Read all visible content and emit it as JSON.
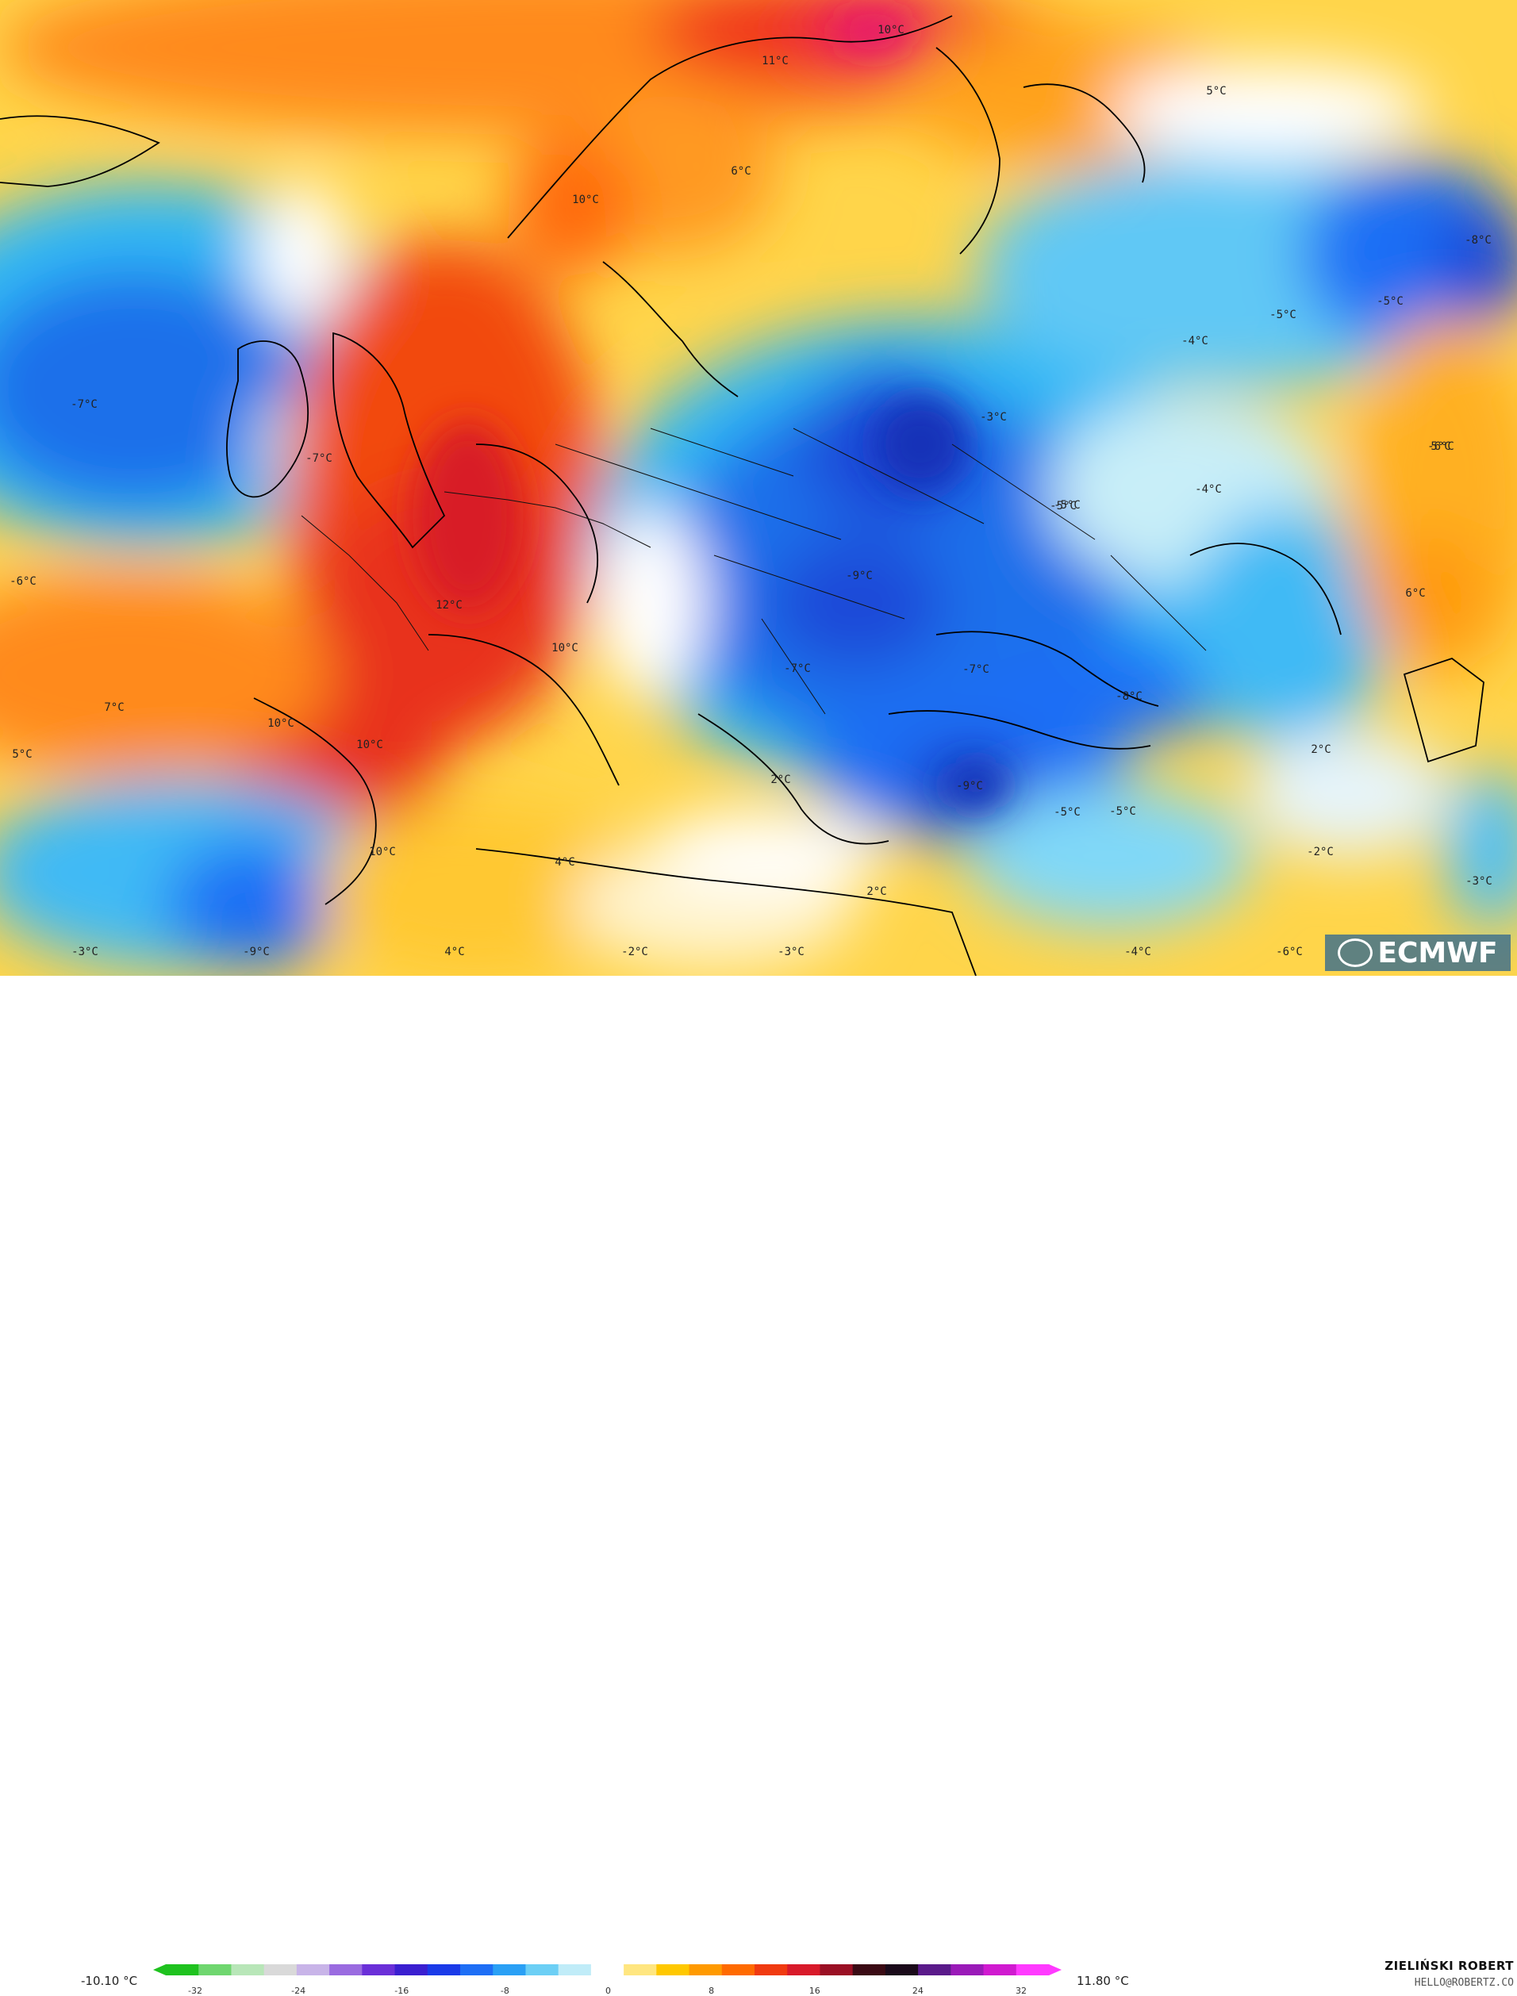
{
  "map": {
    "labels": [
      {
        "text": "10°C"
      },
      {
        "text": "11°C"
      },
      {
        "text": "5°C"
      },
      {
        "text": "6°C"
      },
      {
        "text": "10°C"
      },
      {
        "text": "-8°C"
      },
      {
        "text": "-5°C"
      },
      {
        "text": "-5°C"
      },
      {
        "text": "-4°C"
      },
      {
        "text": "-7°C"
      },
      {
        "text": "-3°C"
      },
      {
        "text": "-7°C"
      },
      {
        "text": "-6°C"
      },
      {
        "text": "-5°C"
      },
      {
        "text": "5°C"
      },
      {
        "text": "-4°C"
      },
      {
        "text": "-5°C"
      },
      {
        "text": "6°C"
      },
      {
        "text": "12°C"
      },
      {
        "text": "-9°C"
      },
      {
        "text": "10°C"
      },
      {
        "text": "-6°C"
      },
      {
        "text": "7°C"
      },
      {
        "text": "-7°C"
      },
      {
        "text": "-7°C"
      },
      {
        "text": "-8°C"
      },
      {
        "text": "10°C"
      },
      {
        "text": "5°C"
      },
      {
        "text": "10°C"
      },
      {
        "text": "2°C"
      },
      {
        "text": "2°C"
      },
      {
        "text": "-9°C"
      },
      {
        "text": "-5°C"
      },
      {
        "text": "-5°C"
      },
      {
        "text": "10°C"
      },
      {
        "text": "-2°C"
      },
      {
        "text": "4°C"
      },
      {
        "text": "2°C"
      },
      {
        "text": "-3°C"
      },
      {
        "text": "-3°C"
      },
      {
        "text": "-9°C"
      },
      {
        "text": "4°C"
      },
      {
        "text": "-2°C"
      },
      {
        "text": "-3°C"
      },
      {
        "text": "-4°C"
      },
      {
        "text": "-6°C"
      }
    ]
  },
  "legend": {
    "min": "-10.10 °C",
    "max": "11.80 °C",
    "ticks": [
      "-32",
      "-24",
      "-16",
      "-8",
      "0",
      "8",
      "16",
      "24",
      "32"
    ],
    "colors": [
      "#1fc21f",
      "#6fd66f",
      "#b8e6b8",
      "#d9d9d9",
      "#c8b4e8",
      "#9a6be0",
      "#6a2fd8",
      "#3a1fd0",
      "#1a3ae8",
      "#1e6ef5",
      "#2aa0f5",
      "#6ccff5",
      "#c0ecf8",
      "#ffffff",
      "#ffe680",
      "#ffc800",
      "#ff9a00",
      "#ff6a00",
      "#f03a10",
      "#d81a2a",
      "#9a0f24",
      "#3a0a14",
      "#1a0a1a",
      "#5a1a8a",
      "#9a1ab8",
      "#d01ad0",
      "#ff3aff"
    ]
  },
  "credits": {
    "author": "ZIELIŃSKI ROBERT",
    "email": "HELLO@ROBERTZ.CO",
    "logo": "ECMWF"
  }
}
